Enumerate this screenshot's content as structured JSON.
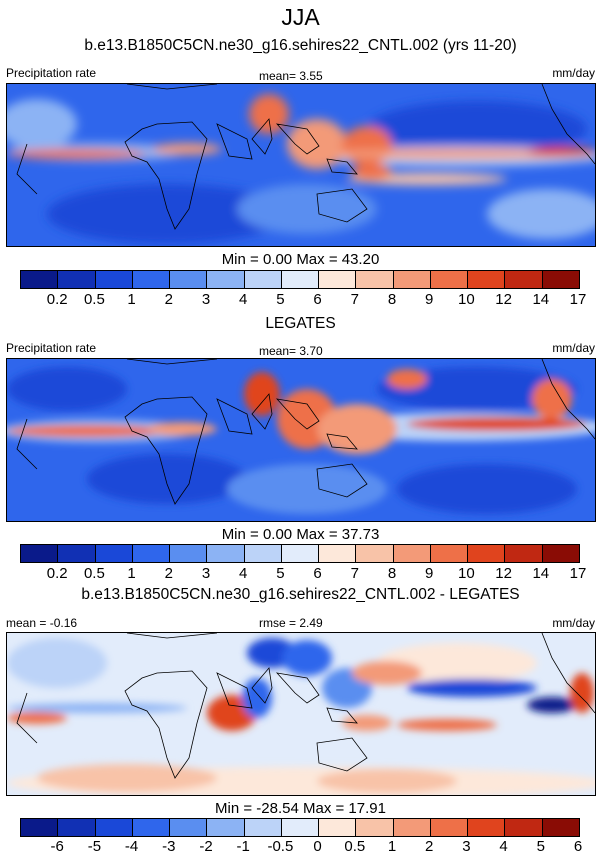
{
  "title": "JJA",
  "panels": [
    {
      "subtitle": "b.e13.B1850C5CN.ne30_g16.sehires22_CNTL.002 (yrs 11-20)",
      "left_label": "Precipitation rate",
      "center_label": "mean=   3.55",
      "units": "mm/day",
      "stats": "Min =   0.00 Max =  43.20",
      "colorbar": {
        "colors": [
          "#0a1a8a",
          "#1130b4",
          "#1a48d8",
          "#2f66ec",
          "#5a8ef0",
          "#8cb3f4",
          "#bcd3f8",
          "#e2ecfb",
          "#fde8da",
          "#f8c3a8",
          "#f39a78",
          "#ee7048",
          "#e0441e",
          "#c02812",
          "#8a0c05"
        ],
        "ticks": [
          "0.2",
          "0.5",
          "1",
          "2",
          "3",
          "4",
          "5",
          "6",
          "7",
          "8",
          "9",
          "10",
          "12",
          "14",
          "17"
        ]
      }
    },
    {
      "subtitle": "LEGATES",
      "left_label": "Precipitation rate",
      "center_label": "mean=   3.70",
      "units": "mm/day",
      "stats": "Min =   0.00 Max =  37.73",
      "colorbar": {
        "colors": [
          "#0a1a8a",
          "#1130b4",
          "#1a48d8",
          "#2f66ec",
          "#5a8ef0",
          "#8cb3f4",
          "#bcd3f8",
          "#e2ecfb",
          "#fde8da",
          "#f8c3a8",
          "#f39a78",
          "#ee7048",
          "#e0441e",
          "#c02812",
          "#8a0c05"
        ],
        "ticks": [
          "0.2",
          "0.5",
          "1",
          "2",
          "3",
          "4",
          "5",
          "6",
          "7",
          "8",
          "9",
          "10",
          "12",
          "14",
          "17"
        ]
      }
    },
    {
      "subtitle": "b.e13.B1850C5CN.ne30_g16.sehires22_CNTL.002 - LEGATES",
      "left_label": "mean =  -0.16",
      "center_label": "rmse =   2.49",
      "units": "mm/day",
      "stats": "Min = -28.54 Max =  17.91",
      "colorbar": {
        "colors": [
          "#0a1a8a",
          "#1130b4",
          "#1a48d8",
          "#2f66ec",
          "#5a8ef0",
          "#8cb3f4",
          "#bcd3f8",
          "#e2ecfb",
          "#fde8da",
          "#f8c3a8",
          "#f39a78",
          "#ee7048",
          "#e0441e",
          "#c02812",
          "#8a0c05"
        ],
        "ticks": [
          "-6",
          "-5",
          "-4",
          "-3",
          "-2",
          "-1",
          "-0.5",
          "0",
          "0.5",
          "1",
          "2",
          "3",
          "4",
          "5",
          "6"
        ]
      }
    }
  ]
}
